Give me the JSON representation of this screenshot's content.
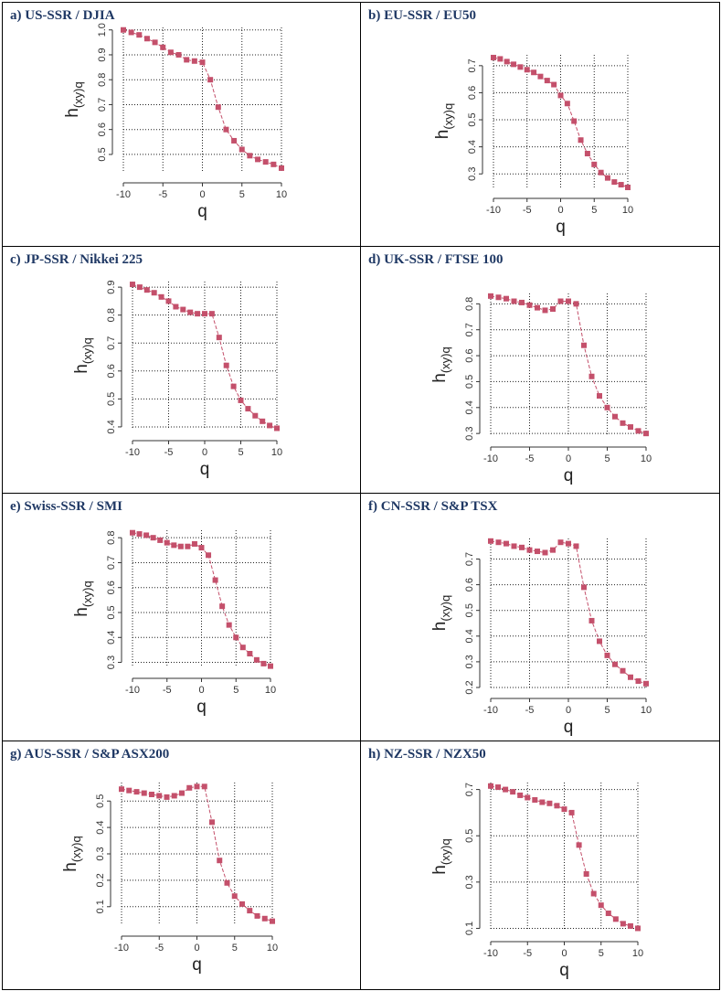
{
  "chart_data": [
    {
      "type": "line",
      "title": "a) US-SSR / DJIA",
      "xlabel": "q",
      "ylabel_main": "h",
      "ylabel_sub": "(xy)q",
      "xlim": [
        -10,
        10
      ],
      "ylim": [
        0.43,
        1.01
      ],
      "xticks": [
        "-10",
        "-5",
        "0",
        "5",
        "10"
      ],
      "yticks": [
        "0.5",
        "0.6",
        "0.7",
        "0.8",
        "0.9",
        "1.0"
      ],
      "series": [
        {
          "name": "h(xy)q",
          "x": [
            -10,
            -9,
            -8,
            -7,
            -6,
            -5,
            -4,
            -3,
            -2,
            -1,
            0,
            1,
            2,
            3,
            4,
            5,
            6,
            7,
            8,
            9,
            10
          ],
          "values": [
            1.0,
            0.99,
            0.98,
            0.965,
            0.95,
            0.93,
            0.91,
            0.9,
            0.88,
            0.875,
            0.87,
            0.8,
            0.69,
            0.6,
            0.555,
            0.52,
            0.495,
            0.48,
            0.47,
            0.46,
            0.445
          ]
        }
      ]
    },
    {
      "type": "line",
      "title": "b) EU-SSR / EU50",
      "xlabel": "q",
      "ylabel_main": "h",
      "ylabel_sub": "(xy)q",
      "xlim": [
        -10,
        10
      ],
      "ylim": [
        0.25,
        0.74
      ],
      "xticks": [
        "-10",
        "-5",
        "0",
        "5",
        "10"
      ],
      "yticks": [
        "0.3",
        "0.4",
        "0.5",
        "0.6",
        "0.7"
      ],
      "series": [
        {
          "name": "h(xy)q",
          "x": [
            -10,
            -9,
            -8,
            -7,
            -6,
            -5,
            -4,
            -3,
            -2,
            -1,
            0,
            1,
            2,
            3,
            4,
            5,
            6,
            7,
            8,
            9,
            10
          ],
          "values": [
            0.73,
            0.725,
            0.715,
            0.705,
            0.695,
            0.685,
            0.675,
            0.66,
            0.645,
            0.63,
            0.59,
            0.56,
            0.495,
            0.425,
            0.375,
            0.335,
            0.305,
            0.285,
            0.27,
            0.26,
            0.25
          ]
        }
      ]
    },
    {
      "type": "line",
      "title": "c) JP-SSR / Nikkei 225",
      "xlabel": "q",
      "ylabel_main": "h",
      "ylabel_sub": "(xy)q",
      "xlim": [
        -10,
        10
      ],
      "ylim": [
        0.39,
        0.92
      ],
      "xticks": [
        "-10",
        "-5",
        "0",
        "5",
        "10"
      ],
      "yticks": [
        "0.4",
        "0.5",
        "0.6",
        "0.7",
        "0.8",
        "0.9"
      ],
      "series": [
        {
          "name": "h(xy)q",
          "x": [
            -10,
            -9,
            -8,
            -7,
            -6,
            -5,
            -4,
            -3,
            -2,
            -1,
            0,
            1,
            2,
            3,
            4,
            5,
            6,
            7,
            8,
            9,
            10
          ],
          "values": [
            0.91,
            0.9,
            0.89,
            0.88,
            0.865,
            0.85,
            0.83,
            0.82,
            0.81,
            0.805,
            0.805,
            0.805,
            0.72,
            0.62,
            0.545,
            0.495,
            0.465,
            0.44,
            0.42,
            0.405,
            0.395
          ]
        }
      ]
    },
    {
      "type": "line",
      "title": "d) UK-SSR / FTSE 100",
      "xlabel": "q",
      "ylabel_main": "h",
      "ylabel_sub": "(xy)q",
      "xlim": [
        -10,
        10
      ],
      "ylim": [
        0.29,
        0.84
      ],
      "xticks": [
        "-10",
        "-5",
        "0",
        "5",
        "10"
      ],
      "yticks": [
        "0.3",
        "0.4",
        "0.5",
        "0.6",
        "0.7",
        "0.8"
      ],
      "series": [
        {
          "name": "h(xy)q",
          "x": [
            -10,
            -9,
            -8,
            -7,
            -6,
            -5,
            -4,
            -3,
            -2,
            -1,
            0,
            1,
            2,
            3,
            4,
            5,
            6,
            7,
            8,
            9,
            10
          ],
          "values": [
            0.83,
            0.825,
            0.82,
            0.81,
            0.805,
            0.795,
            0.785,
            0.775,
            0.78,
            0.81,
            0.81,
            0.8,
            0.64,
            0.52,
            0.445,
            0.4,
            0.365,
            0.34,
            0.325,
            0.31,
            0.3
          ]
        }
      ]
    },
    {
      "type": "line",
      "title": "e) Swiss-SSR / SMI",
      "xlabel": "q",
      "ylabel_main": "h",
      "ylabel_sub": "(xy)q",
      "xlim": [
        -10,
        10
      ],
      "ylim": [
        0.28,
        0.83
      ],
      "xticks": [
        "-10",
        "-5",
        "0",
        "5",
        "10"
      ],
      "yticks": [
        "0.3",
        "0.4",
        "0.5",
        "0.6",
        "0.7",
        "0.8"
      ],
      "series": [
        {
          "name": "h(xy)q",
          "x": [
            -10,
            -9,
            -8,
            -7,
            -6,
            -5,
            -4,
            -3,
            -2,
            -1,
            0,
            1,
            2,
            3,
            4,
            5,
            6,
            7,
            8,
            9,
            10
          ],
          "values": [
            0.82,
            0.815,
            0.81,
            0.8,
            0.79,
            0.78,
            0.77,
            0.765,
            0.765,
            0.775,
            0.76,
            0.73,
            0.63,
            0.525,
            0.45,
            0.4,
            0.36,
            0.335,
            0.31,
            0.295,
            0.285
          ]
        }
      ]
    },
    {
      "type": "line",
      "title": "f) CN-SSR / S&P TSX",
      "xlabel": "q",
      "ylabel_main": "h",
      "ylabel_sub": "(xy)q",
      "xlim": [
        -10,
        10
      ],
      "ylim": [
        0.2,
        0.78
      ],
      "xticks": [
        "-10",
        "-5",
        "0",
        "5",
        "10"
      ],
      "yticks": [
        "0.2",
        "0.3",
        "0.4",
        "0.5",
        "0.6",
        "0.7"
      ],
      "series": [
        {
          "name": "h(xy)q",
          "x": [
            -10,
            -9,
            -8,
            -7,
            -6,
            -5,
            -4,
            -3,
            -2,
            -1,
            0,
            1,
            2,
            3,
            4,
            5,
            6,
            7,
            8,
            9,
            10
          ],
          "values": [
            0.77,
            0.765,
            0.76,
            0.75,
            0.745,
            0.735,
            0.73,
            0.725,
            0.735,
            0.765,
            0.76,
            0.75,
            0.59,
            0.46,
            0.38,
            0.325,
            0.29,
            0.265,
            0.24,
            0.225,
            0.215
          ]
        }
      ]
    },
    {
      "type": "line",
      "title": "g) AUS-SSR / S&P ASX200",
      "xlabel": "q",
      "ylabel_main": "h",
      "ylabel_sub": "(xy)q",
      "xlim": [
        -10,
        10
      ],
      "ylim": [
        0.03,
        0.57
      ],
      "xticks": [
        "-10",
        "-5",
        "0",
        "5",
        "10"
      ],
      "yticks": [
        "0.1",
        "0.2",
        "0.3",
        "0.4",
        "0.5"
      ],
      "series": [
        {
          "name": "h(xy)q",
          "x": [
            -10,
            -9,
            -8,
            -7,
            -6,
            -5,
            -4,
            -3,
            -2,
            -1,
            0,
            1,
            2,
            3,
            4,
            5,
            6,
            7,
            8,
            9,
            10
          ],
          "values": [
            0.545,
            0.54,
            0.535,
            0.53,
            0.525,
            0.52,
            0.515,
            0.52,
            0.53,
            0.55,
            0.555,
            0.555,
            0.42,
            0.275,
            0.19,
            0.14,
            0.11,
            0.085,
            0.065,
            0.055,
            0.045
          ]
        }
      ]
    },
    {
      "type": "line",
      "title": "h) NZ-SSR / NZX50",
      "xlabel": "q",
      "ylabel_main": "h",
      "ylabel_sub": "(xy)q",
      "xlim": [
        -10,
        10
      ],
      "ylim": [
        0.09,
        0.73
      ],
      "xticks": [
        "-10",
        "-5",
        "0",
        "5",
        "10"
      ],
      "yticks": [
        "0.1",
        "0.3",
        "0.5",
        "0.7"
      ],
      "series": [
        {
          "name": "h(xy)q",
          "x": [
            -10,
            -9,
            -8,
            -7,
            -6,
            -5,
            -4,
            -3,
            -2,
            -1,
            0,
            1,
            2,
            3,
            4,
            5,
            6,
            7,
            8,
            9,
            10
          ],
          "values": [
            0.715,
            0.71,
            0.7,
            0.69,
            0.675,
            0.665,
            0.655,
            0.645,
            0.64,
            0.63,
            0.615,
            0.6,
            0.46,
            0.335,
            0.25,
            0.2,
            0.165,
            0.14,
            0.12,
            0.11,
            0.1
          ]
        }
      ]
    }
  ],
  "colors": {
    "marker": "#c4506b",
    "line": "#c4506b",
    "grid": "#222222",
    "axis": "#333333",
    "title": "#1f3864"
  }
}
